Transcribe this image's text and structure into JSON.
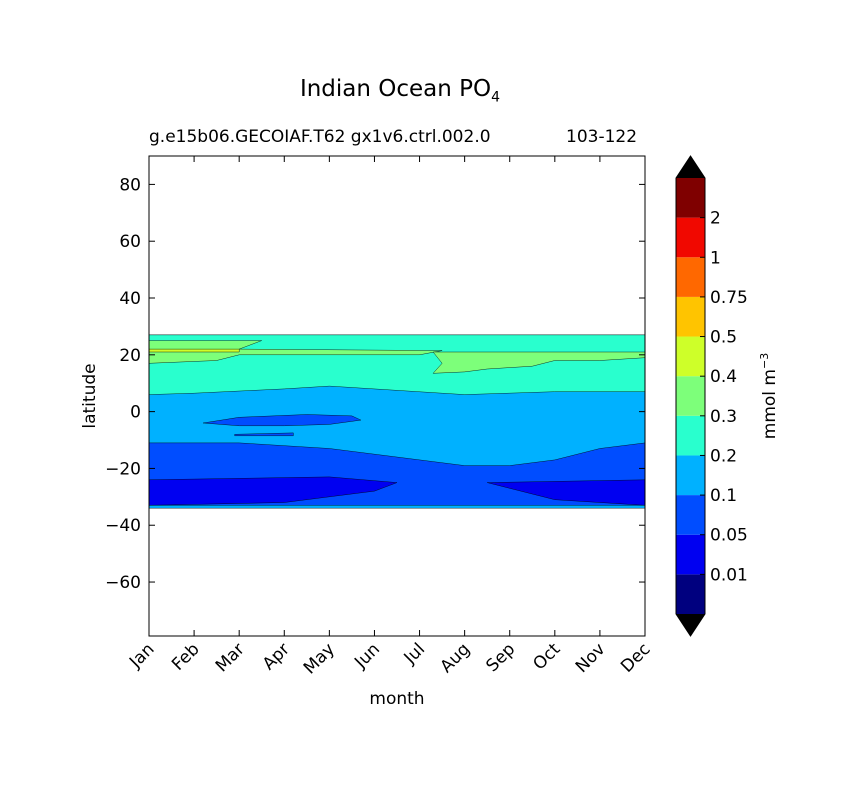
{
  "chart_data": {
    "type": "contour",
    "title": "Indian Ocean PO",
    "title_subscript": "4",
    "subtitle_left": "g.e15b06.GECOIAF.T62 gx1v6.ctrl.002.0",
    "subtitle_right": "103-122",
    "xlabel": "month",
    "ylabel": "latitude",
    "x_categories": [
      "Jan",
      "Feb",
      "Mar",
      "Apr",
      "May",
      "Jun",
      "Jul",
      "Aug",
      "Sep",
      "Oct",
      "Nov",
      "Dec"
    ],
    "ylim": [
      -79,
      90
    ],
    "y_ticks": [
      80,
      60,
      40,
      20,
      0,
      -20,
      -40,
      -60
    ],
    "y_tick_labels": [
      "80",
      "60",
      "40",
      "20",
      "0",
      "−20",
      "−40",
      "−60"
    ],
    "data_extent_lat": [
      -34,
      27
    ],
    "colorbar": {
      "label": "mmol m",
      "label_superscript": "−3",
      "levels": [
        0,
        0.01,
        0.05,
        0.1,
        0.2,
        0.3,
        0.4,
        0.5,
        0.75,
        1,
        2
      ],
      "tick_labels": [
        "0.01",
        "0.05",
        "0.1",
        "0.2",
        "0.3",
        "0.4",
        "0.5",
        "0.75",
        "1",
        "2"
      ],
      "colors": [
        "#00007f",
        "#0000f1",
        "#004dff",
        "#00b1ff",
        "#29ffce",
        "#7dff7a",
        "#ceff29",
        "#ffc400",
        "#ff6800",
        "#f10800",
        "#7f0000"
      ],
      "extend": "both"
    },
    "fields": {
      "upper_0.3_region_lat_range": [
        14,
        25
      ],
      "equatorial_0.05_patch": {
        "months": [
          "Feb",
          "May"
        ],
        "lat": [
          -5,
          0
        ]
      },
      "south_0.05_band_lat": [
        -33,
        -23
      ],
      "southern_low_0.01_patches": [
        {
          "months": [
            "Jan",
            "Jul"
          ],
          "lat": [
            -33,
            -24
          ]
        },
        {
          "months": [
            "Sep",
            "Dec"
          ],
          "lat": [
            -33,
            -24
          ]
        }
      ]
    }
  }
}
